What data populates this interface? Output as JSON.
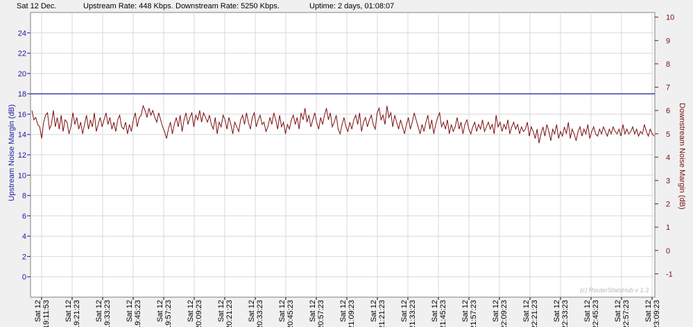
{
  "status": {
    "date": "Sat 12 Dec.",
    "upstream": "Upstream Rate: 448 Kbps.",
    "downstream": "Downstream Rate: 5250 Kbps.",
    "uptime": "Uptime: 2 days, 01:08:07"
  },
  "watermark": "(c) RouterStatsHub v 1.3",
  "colors": {
    "upstream": "#1a1aa0",
    "downstream": "#7a0e0e",
    "grid": "#d8d8d8"
  },
  "chart_data": {
    "type": "line",
    "title": "",
    "ylabel": "Upstream Noise Margin (dB)",
    "y2label": "Downstream Noise Margin (dB)",
    "ylim": [
      -2,
      26
    ],
    "y2lim": [
      -2,
      10.2
    ],
    "yticks": [
      0,
      2,
      4,
      6,
      8,
      10,
      12,
      14,
      16,
      18,
      20,
      22,
      24
    ],
    "y2ticks": [
      -1,
      0,
      1,
      2,
      3,
      4,
      5,
      6,
      7,
      8,
      9,
      10
    ],
    "grid": true,
    "xticks": [
      {
        "day": "Sat 12",
        "time": "19:11:53"
      },
      {
        "day": "Sat 12",
        "time": "19:21:23"
      },
      {
        "day": "Sat 12",
        "time": "19:33:23"
      },
      {
        "day": "Sat 12",
        "time": "19:45:23"
      },
      {
        "day": "Sat 12",
        "time": "19:57:23"
      },
      {
        "day": "Sat 12",
        "time": "20:09:23"
      },
      {
        "day": "Sat 12",
        "time": "20:21:23"
      },
      {
        "day": "Sat 12",
        "time": "20:33:23"
      },
      {
        "day": "Sat 12",
        "time": "20:45:23"
      },
      {
        "day": "Sat 12",
        "time": "20:57:23"
      },
      {
        "day": "Sat 12",
        "time": "21:09:23"
      },
      {
        "day": "Sat 12",
        "time": "21:21:23"
      },
      {
        "day": "Sat 12",
        "time": "21:33:23"
      },
      {
        "day": "Sat 12",
        "time": "21:45:23"
      },
      {
        "day": "Sat 12",
        "time": "21:57:23"
      },
      {
        "day": "Sat 12",
        "time": "22:09:23"
      },
      {
        "day": "Sat 12",
        "time": "22:21:23"
      },
      {
        "day": "Sat 12",
        "time": "22:33:23"
      },
      {
        "day": "Sat 12",
        "time": "22:45:23"
      },
      {
        "day": "Sat 12",
        "time": "22:57:23"
      },
      {
        "day": "Sat 12",
        "time": "23:09:23"
      }
    ],
    "series": [
      {
        "axis": "left",
        "values": [
          18,
          18
        ]
      },
      {
        "axis": "right",
        "values": [
          6.0,
          5.6,
          5.7,
          5.4,
          5.3,
          4.8,
          5.5,
          5.8,
          5.9,
          5.2,
          5.4,
          6.0,
          5.3,
          5.7,
          5.2,
          5.8,
          5.1,
          5.6,
          5.5,
          5.0,
          5.3,
          5.9,
          5.4,
          5.7,
          5.2,
          5.5,
          5.0,
          5.4,
          5.8,
          5.2,
          5.6,
          5.3,
          5.9,
          5.1,
          5.4,
          5.7,
          5.3,
          5.6,
          5.9,
          5.4,
          5.7,
          5.2,
          5.5,
          5.1,
          5.6,
          5.8,
          5.3,
          5.2,
          5.5,
          5.0,
          5.4,
          5.1,
          5.6,
          5.9,
          5.3,
          5.7,
          5.8,
          6.2,
          6.0,
          5.7,
          6.1,
          5.8,
          6.0,
          5.7,
          5.5,
          5.9,
          5.6,
          5.3,
          5.1,
          4.8,
          5.2,
          5.5,
          5.0,
          5.4,
          5.7,
          5.3,
          5.8,
          5.1,
          5.6,
          5.9,
          5.4,
          5.7,
          5.9,
          5.3,
          5.8,
          5.6,
          6.0,
          5.5,
          5.9,
          5.7,
          5.5,
          5.8,
          5.4,
          5.2,
          5.7,
          5.0,
          5.5,
          5.3,
          5.8,
          5.6,
          5.2,
          5.7,
          5.4,
          5.0,
          5.5,
          5.3,
          5.1,
          5.6,
          5.8,
          5.4,
          5.9,
          5.5,
          5.2,
          5.7,
          5.9,
          5.3,
          5.6,
          5.8,
          5.4,
          5.5,
          5.1,
          5.3,
          5.7,
          5.4,
          5.9,
          5.6,
          5.2,
          5.8,
          5.3,
          5.5,
          5.0,
          5.4,
          5.2,
          5.6,
          5.8,
          5.4,
          5.7,
          5.2,
          5.9,
          5.6,
          6.1,
          5.5,
          5.8,
          5.3,
          5.6,
          5.9,
          5.5,
          5.2,
          5.7,
          5.4,
          5.8,
          6.1,
          5.6,
          5.9,
          5.3,
          5.5,
          5.8,
          5.2,
          5.0,
          5.4,
          5.7,
          5.3,
          5.1,
          5.5,
          5.2,
          5.6,
          5.8,
          5.4,
          5.9,
          5.1,
          5.5,
          5.7,
          5.3,
          5.6,
          5.8,
          5.4,
          5.2,
          5.9,
          6.1,
          5.6,
          5.8,
          5.4,
          6.2,
          5.7,
          5.9,
          5.3,
          5.8,
          5.5,
          5.2,
          5.6,
          5.3,
          5.0,
          5.4,
          5.7,
          5.2,
          5.5,
          5.9,
          5.6,
          5.3,
          5.0,
          5.4,
          5.1,
          5.5,
          5.8,
          5.2,
          5.6,
          5.0,
          5.4,
          5.7,
          5.9,
          5.3,
          5.5,
          5.2,
          5.6,
          5.0,
          5.4,
          5.1,
          5.3,
          5.7,
          5.2,
          5.5,
          5.0,
          5.4,
          5.6,
          5.2,
          5.0,
          5.3,
          5.5,
          5.1,
          5.4,
          5.2,
          5.6,
          5.1,
          5.3,
          5.5,
          5.2,
          5.4,
          5.0,
          5.8,
          5.3,
          5.5,
          5.1,
          5.4,
          5.2,
          5.6,
          5.0,
          5.3,
          5.5,
          5.2,
          5.4,
          5.0,
          5.3,
          5.1,
          5.2,
          5.5,
          4.9,
          5.3,
          5.1,
          4.8,
          5.2,
          4.6,
          5.0,
          5.3,
          4.9,
          5.4,
          5.1,
          4.7,
          5.2,
          5.0,
          5.4,
          4.8,
          5.1,
          4.9,
          5.3,
          5.0,
          5.5,
          4.8,
          5.2,
          5.0,
          4.7,
          5.1,
          5.3,
          4.9,
          5.2,
          5.0,
          5.4,
          4.8,
          5.1,
          5.3,
          5.0,
          4.9,
          5.2,
          5.0,
          5.3,
          5.1,
          4.9,
          5.2,
          5.0,
          5.3,
          5.1,
          5.0,
          5.2,
          4.9,
          5.4,
          5.0,
          5.2,
          5.0,
          5.1,
          5.3,
          5.0,
          5.2,
          4.9,
          5.1,
          5.0,
          5.4,
          5.1,
          4.9,
          5.2,
          5.0,
          4.9
        ]
      }
    ]
  }
}
